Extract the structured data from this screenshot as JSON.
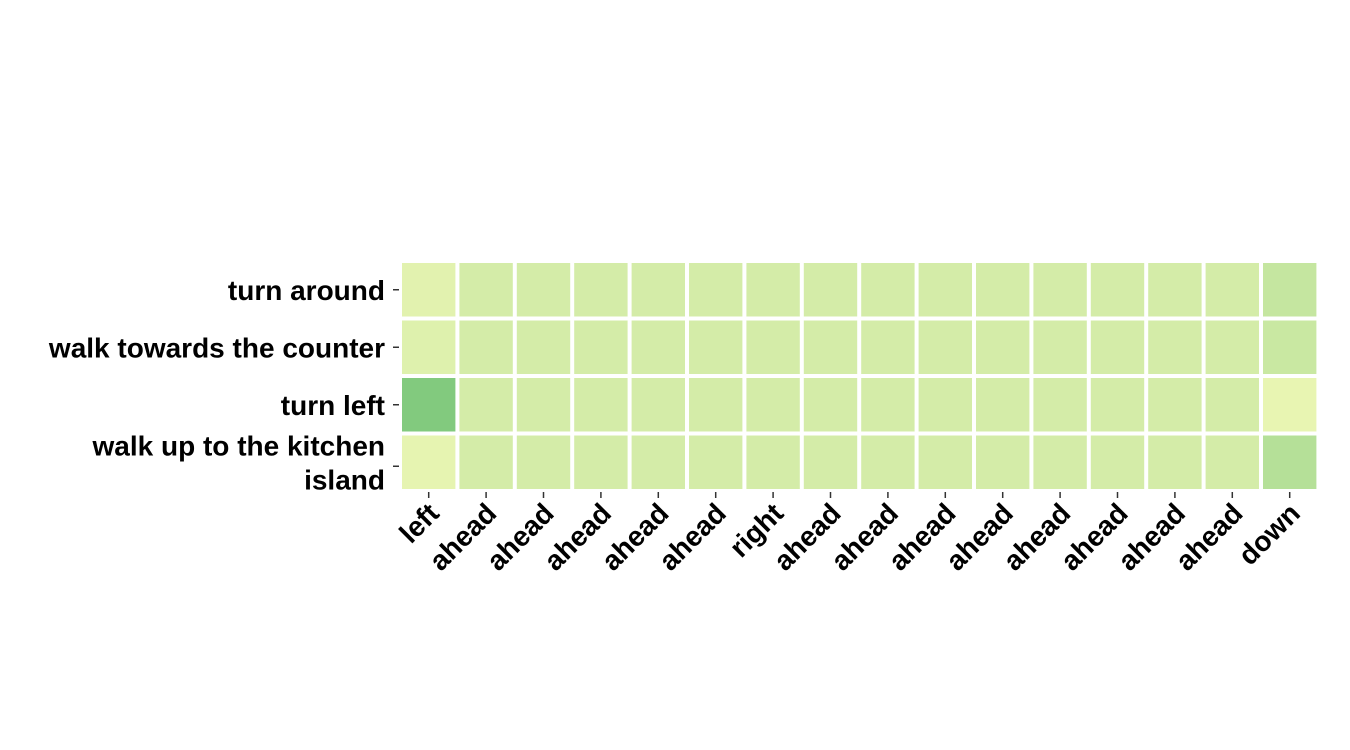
{
  "chart_data": {
    "type": "heatmap",
    "title": "",
    "xlabel": "",
    "ylabel": "",
    "x_categories": [
      "left",
      "ahead",
      "ahead",
      "ahead",
      "ahead",
      "ahead",
      "right",
      "ahead",
      "ahead",
      "ahead",
      "ahead",
      "ahead",
      "ahead",
      "ahead",
      "ahead",
      "down"
    ],
    "y_categories": [
      [
        "turn around"
      ],
      [
        "walk towards the counter"
      ],
      [
        "turn left"
      ],
      [
        "walk up to the kitchen",
        "island"
      ]
    ],
    "values": [
      [
        0.08,
        0.15,
        0.15,
        0.15,
        0.15,
        0.15,
        0.15,
        0.15,
        0.15,
        0.15,
        0.15,
        0.15,
        0.15,
        0.15,
        0.15,
        0.22
      ],
      [
        0.1,
        0.15,
        0.15,
        0.15,
        0.15,
        0.15,
        0.15,
        0.15,
        0.15,
        0.15,
        0.15,
        0.15,
        0.15,
        0.15,
        0.15,
        0.2
      ],
      [
        0.55,
        0.15,
        0.15,
        0.15,
        0.15,
        0.15,
        0.15,
        0.15,
        0.15,
        0.15,
        0.15,
        0.15,
        0.15,
        0.15,
        0.15,
        0.05
      ],
      [
        0.06,
        0.15,
        0.15,
        0.15,
        0.15,
        0.15,
        0.15,
        0.15,
        0.15,
        0.15,
        0.15,
        0.15,
        0.15,
        0.15,
        0.15,
        0.3
      ]
    ],
    "colorscale": {
      "low": "#f2f9b7",
      "high": "#78c679"
    },
    "grid": false,
    "legend": "none"
  }
}
